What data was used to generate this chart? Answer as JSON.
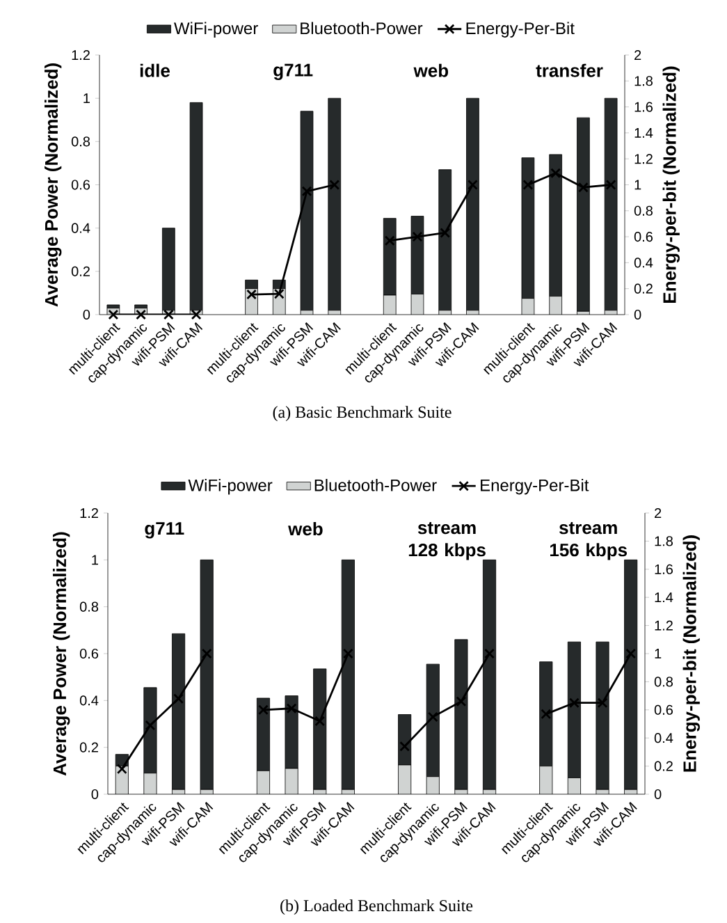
{
  "chart_data": [
    {
      "type": "bar",
      "stacked": true,
      "legend": "top",
      "categories": [
        "multi-client",
        "cap-dynamic",
        "wifi-PSM",
        "wifi-CAM",
        null,
        "multi-client",
        "cap-dynamic",
        "wifi-PSM",
        "wifi-CAM",
        null,
        "multi-client",
        "cap-dynamic",
        "wifi-PSM",
        "wifi-CAM",
        null,
        "multi-client",
        "cap-dynamic",
        "wifi-PSM",
        "wifi-CAM"
      ],
      "series": [
        {
          "name": "Bluetooth-Power",
          "color": "#d0d3d2",
          "values": [
            0.03,
            0.03,
            0.02,
            0.02,
            null,
            0.12,
            0.12,
            0.02,
            0.02,
            null,
            0.09,
            0.095,
            0.02,
            0.02,
            null,
            0.075,
            0.085,
            0.015,
            0.02
          ]
        },
        {
          "name": "WiFi-power",
          "color": "#262a2b",
          "values": [
            0.015,
            0.015,
            0.38,
            0.96,
            null,
            0.04,
            0.04,
            0.92,
            0.98,
            null,
            0.355,
            0.36,
            0.65,
            0.98,
            null,
            0.65,
            0.655,
            0.895,
            0.98
          ]
        },
        {
          "name": "Energy-Per-Bit",
          "type": "line",
          "axis": "y2",
          "marker": "cross",
          "color": "#000000",
          "values": [
            0,
            0,
            0,
            0,
            null,
            0.155,
            0.16,
            0.95,
            1.0,
            null,
            0.57,
            0.6,
            0.63,
            1.0,
            null,
            1.0,
            1.09,
            0.98,
            1.0
          ]
        }
      ],
      "ylim": [
        0,
        1.2
      ],
      "yticks": [
        0,
        0.2,
        0.4,
        0.6,
        0.8,
        1,
        1.2
      ],
      "y2lim": [
        0,
        2
      ],
      "y2ticks": [
        0,
        0.2,
        0.4,
        0.6,
        0.8,
        1,
        1.2,
        1.4,
        1.6,
        1.8,
        2
      ],
      "ylabel": "Average Power (Normalized)",
      "y2label": "Energy-per-bit (Normalized)",
      "annotations": [
        "idle",
        "g711",
        "web",
        "transfer",
        "(a) Basic Benchmark Suite"
      ]
    },
    {
      "type": "bar",
      "stacked": true,
      "legend": "top",
      "categories": [
        "multi-client",
        "cap-dynamic",
        "wifi-PSM",
        "wifi-CAM",
        null,
        "multi-client",
        "cap-dynamic",
        "wifi-PSM",
        "wifi-CAM",
        null,
        "multi-client",
        "cap-dynamic",
        "wifi-PSM",
        "wifi-CAM",
        null,
        "multi-client",
        "cap-dynamic",
        "wifi-PSM",
        "wifi-CAM"
      ],
      "series": [
        {
          "name": "Bluetooth-Power",
          "color": "#d0d3d2",
          "values": [
            0.12,
            0.09,
            0.02,
            0.02,
            null,
            0.1,
            0.11,
            0.02,
            0.02,
            null,
            0.125,
            0.075,
            0.02,
            0.02,
            null,
            0.12,
            0.07,
            0.02,
            0.02
          ]
        },
        {
          "name": "WiFi-power",
          "color": "#262a2b",
          "values": [
            0.05,
            0.365,
            0.665,
            0.98,
            null,
            0.31,
            0.31,
            0.515,
            0.98,
            null,
            0.215,
            0.48,
            0.64,
            0.98,
            null,
            0.445,
            0.58,
            0.63,
            0.98
          ]
        },
        {
          "name": "Energy-Per-Bit",
          "type": "line",
          "axis": "y2",
          "marker": "cross",
          "color": "#000000",
          "values": [
            0.18,
            0.49,
            0.68,
            1.0,
            null,
            0.6,
            0.61,
            0.52,
            1.0,
            null,
            0.34,
            0.55,
            0.66,
            1.0,
            null,
            0.57,
            0.65,
            0.65,
            1.0
          ]
        }
      ],
      "ylim": [
        0,
        1.2
      ],
      "yticks": [
        0,
        0.2,
        0.4,
        0.6,
        0.8,
        1,
        1.2
      ],
      "y2lim": [
        0,
        2
      ],
      "y2ticks": [
        0,
        0.2,
        0.4,
        0.6,
        0.8,
        1,
        1.2,
        1.4,
        1.6,
        1.8,
        2
      ],
      "ylabel": "Average Power (Normalized)",
      "y2label": "Energy-per-bit (Normalized)",
      "annotations": [
        "g711",
        "web",
        "stream 128 kbps",
        "stream 156 kbps",
        "(b) Loaded Benchmark Suite"
      ]
    }
  ]
}
